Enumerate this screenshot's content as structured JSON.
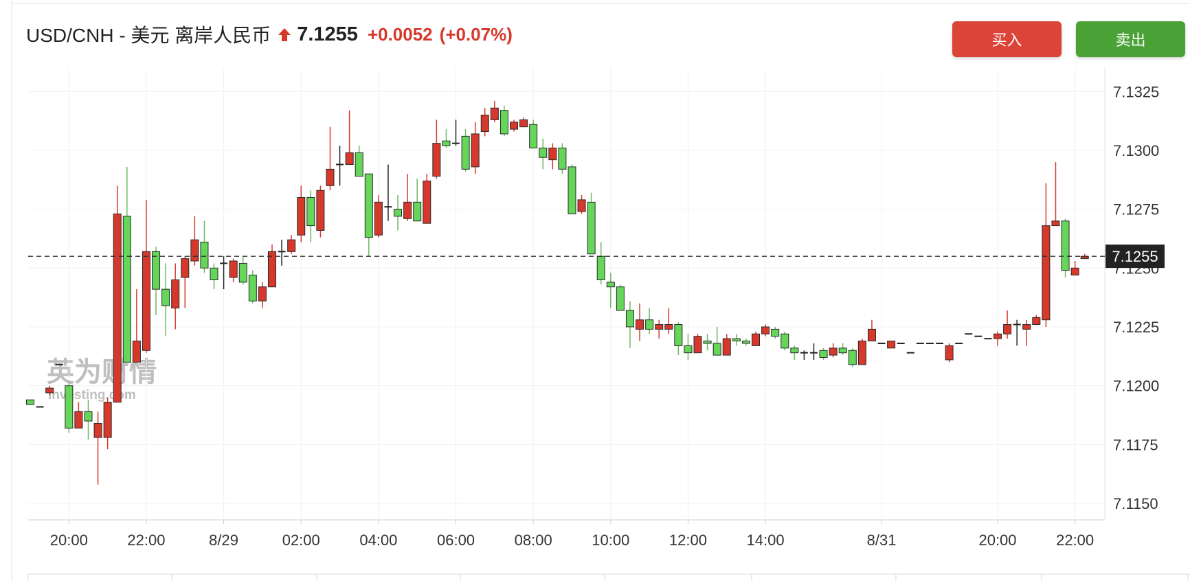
{
  "chart_data": {
    "type": "candlestick",
    "title": "USD/CNH - 美元 离岸人民币",
    "price": "7.1255",
    "change": "+0.0052",
    "change_pct": "(+0.07%)",
    "buttons": [
      "买入",
      "卖出"
    ],
    "watermark": [
      "英为财情",
      "Investing.com"
    ],
    "categories": [
      null,
      null,
      null,
      null,
      "20:00",
      null,
      null,
      null,
      null,
      null,
      null,
      null,
      "22:00",
      null,
      null,
      null,
      null,
      null,
      null,
      null,
      "8/29",
      null,
      null,
      null,
      null,
      null,
      null,
      null,
      "02:00",
      null,
      null,
      null,
      null,
      null,
      null,
      null,
      "04:00",
      null,
      null,
      null,
      null,
      null,
      null,
      null,
      "06:00",
      null,
      null,
      null,
      null,
      null,
      null,
      null,
      "08:00",
      null,
      null,
      null,
      null,
      null,
      null,
      null,
      "10:00",
      null,
      null,
      null,
      null,
      null,
      null,
      null,
      "12:00",
      null,
      null,
      null,
      null,
      null,
      null,
      null,
      "14:00",
      null,
      null,
      null,
      null,
      null,
      null,
      null,
      null,
      null,
      null,
      null,
      "8/31",
      null,
      null,
      null,
      null,
      null,
      null,
      null,
      null,
      null,
      null,
      null,
      "20:00",
      null,
      null,
      null,
      null,
      null,
      null,
      null,
      "22:00",
      null
    ],
    "open": [
      7.1194,
      7.1191,
      7.1197,
      7.1209,
      7.12,
      7.1182,
      7.1189,
      7.1178,
      7.1178,
      7.1193,
      7.1272,
      7.121,
      7.1215,
      7.1257,
      7.1241,
      7.1233,
      7.1246,
      7.1253,
      7.1261,
      7.125,
      7.1252,
      7.1246,
      7.1252,
      7.1247,
      7.1236,
      7.1242,
      7.1257,
      7.1257,
      7.1264,
      7.128,
      7.1266,
      7.1285,
      7.1294,
      7.1294,
      7.1299,
      7.129,
      7.1264,
      7.1276,
      7.1275,
      7.1271,
      7.1278,
      7.1269,
      7.1289,
      7.1304,
      7.1303,
      7.1306,
      7.1293,
      7.1308,
      7.1313,
      7.1317,
      7.1309,
      7.131,
      7.1311,
      7.1301,
      7.1296,
      7.1301,
      7.1293,
      7.1274,
      7.1278,
      7.1255,
      7.1244,
      7.1242,
      7.1232,
      7.1224,
      7.1228,
      7.1224,
      7.1224,
      7.1226,
      7.1217,
      7.1214,
      7.1219,
      7.1218,
      7.1213,
      7.122,
      7.1219,
      7.1217,
      7.1222,
      7.1224,
      7.1222,
      7.1216,
      7.1214,
      7.1214,
      7.1215,
      7.1213,
      7.1216,
      7.1215,
      7.1209,
      7.1219,
      7.1218,
      7.1216,
      7.1218,
      7.1214,
      7.1218,
      7.1218,
      7.1218,
      7.1211,
      7.1218,
      7.1222,
      7.1221,
      7.122,
      7.122,
      7.1222,
      7.1226,
      7.1224,
      7.1226,
      7.1228,
      7.1268,
      7.127,
      7.1247,
      7.1254
    ],
    "high": [
      7.1194,
      7.1191,
      7.12,
      7.1209,
      7.1202,
      7.1193,
      7.1194,
      7.1189,
      7.1195,
      7.1285,
      7.1293,
      7.1241,
      7.1279,
      7.1259,
      7.1252,
      7.1252,
      7.1255,
      7.1272,
      7.127,
      7.1252,
      7.1255,
      7.1254,
      7.1255,
      7.1249,
      7.1244,
      7.126,
      7.1262,
      7.1264,
      7.1285,
      7.1283,
      7.1285,
      7.131,
      7.1302,
      7.1317,
      7.1302,
      7.129,
      7.1281,
      7.1294,
      7.1281,
      7.129,
      7.1288,
      7.129,
      7.1313,
      7.1309,
      7.1313,
      7.1309,
      7.1312,
      7.1318,
      7.1321,
      7.1319,
      7.1313,
      7.1314,
      7.1313,
      7.1305,
      7.1303,
      7.1303,
      7.1294,
      7.1281,
      7.1282,
      7.1261,
      7.1248,
      7.1243,
      7.1236,
      7.1235,
      7.1233,
      7.1228,
      7.1233,
      7.1227,
      7.1222,
      7.1222,
      7.1222,
      7.1225,
      7.1222,
      7.1222,
      7.122,
      7.1223,
      7.1226,
      7.1225,
      7.1223,
      7.1217,
      7.1215,
      7.1218,
      7.1216,
      7.1218,
      7.1218,
      7.1216,
      7.122,
      7.1228,
      7.1218,
      7.1219,
      7.1218,
      7.1214,
      7.1218,
      7.1218,
      7.1218,
      7.1218,
      7.1218,
      7.1222,
      7.1221,
      7.122,
      7.1223,
      7.1232,
      7.1228,
      7.1228,
      7.123,
      7.1286,
      7.1295,
      7.1271,
      7.1253,
      7.1256
    ],
    "low": [
      7.1192,
      7.1191,
      7.1196,
      7.1209,
      7.118,
      7.1182,
      7.1177,
      7.1158,
      7.1173,
      7.1193,
      7.121,
      7.121,
      7.1214,
      7.123,
      7.1221,
      7.1224,
      7.1233,
      7.1251,
      7.1248,
      7.1241,
      7.1241,
      7.1244,
      7.1243,
      7.1235,
      7.1233,
      7.1242,
      7.1251,
      7.1256,
      7.1261,
      7.1261,
      7.1263,
      7.1283,
      7.1285,
      7.1294,
      7.1289,
      7.1255,
      7.1263,
      7.127,
      7.1266,
      7.127,
      7.127,
      7.1269,
      7.1288,
      7.1301,
      7.1302,
      7.1291,
      7.129,
      7.1306,
      7.1312,
      7.1306,
      7.1308,
      7.131,
      7.1301,
      7.1292,
      7.1292,
      7.129,
      7.1273,
      7.1273,
      7.1256,
      7.1243,
      7.1233,
      7.1232,
      7.1216,
      7.1219,
      7.1222,
      7.122,
      7.1222,
      7.1213,
      7.1211,
      7.1214,
      7.1215,
      7.1213,
      7.1213,
      7.1217,
      7.1217,
      7.1217,
      7.1221,
      7.122,
      7.1215,
      7.1211,
      7.1211,
      7.1211,
      7.1211,
      7.1212,
      7.1213,
      7.1208,
      7.1209,
      7.1219,
      7.1218,
      7.1216,
      7.1218,
      7.1214,
      7.1218,
      7.1218,
      7.1218,
      7.121,
      7.1218,
      7.1222,
      7.1221,
      7.122,
      7.1217,
      7.122,
      7.1217,
      7.1217,
      7.1226,
      7.1225,
      7.1268,
      7.1246,
      7.1247,
      7.1254
    ],
    "close": [
      7.1192,
      7.1191,
      7.1199,
      7.1209,
      7.1182,
      7.1189,
      7.1185,
      7.1184,
      7.1193,
      7.1273,
      7.121,
      7.1219,
      7.1257,
      7.1241,
      7.1234,
      7.1245,
      7.1254,
      7.1262,
      7.125,
      7.1245,
      7.1252,
      7.1253,
      7.1244,
      7.1236,
      7.1242,
      7.1257,
      7.1257,
      7.1262,
      7.128,
      7.1268,
      7.1283,
      7.1292,
      7.1294,
      7.1299,
      7.1289,
      7.1263,
      7.1278,
      7.1276,
      7.1272,
      7.1278,
      7.127,
      7.1287,
      7.1303,
      7.1302,
      7.1303,
      7.1292,
      7.1307,
      7.1315,
      7.1318,
      7.1307,
      7.1312,
      7.1313,
      7.1301,
      7.1297,
      7.1301,
      7.1292,
      7.1273,
      7.1279,
      7.1256,
      7.1245,
      7.1242,
      7.1232,
      7.1225,
      7.1228,
      7.1224,
      7.1226,
      7.1226,
      7.1217,
      7.1214,
      7.1221,
      7.1218,
      7.1213,
      7.122,
      7.1219,
      7.1218,
      7.1222,
      7.1225,
      7.1221,
      7.1216,
      7.1214,
      7.1214,
      7.1214,
      7.1212,
      7.1216,
      7.1214,
      7.1209,
      7.1219,
      7.1224,
      7.1218,
      7.1219,
      7.1218,
      7.1214,
      7.1218,
      7.1218,
      7.1218,
      7.1217,
      7.1218,
      7.1222,
      7.1221,
      7.122,
      7.1222,
      7.1226,
      7.1226,
      7.1226,
      7.1229,
      7.1268,
      7.127,
      7.1249,
      7.125,
      7.1255
    ],
    "up_color": "#d6392b",
    "down_color": "#66d65a",
    "flat_color": "#222222",
    "last_price": {
      "value": 7.1255,
      "label": "7.1255"
    },
    "ylim": [
      7.1143,
      7.1335
    ],
    "yticks": [
      {
        "value": 7.115,
        "label": "7.1150"
      },
      7.1175,
      {
        "value": 7.12,
        "label": "7.1200"
      },
      7.1225,
      {
        "value": 7.125,
        "label": "7.1250"
      },
      7.1275,
      {
        "value": 7.13,
        "label": "7.1300"
      },
      7.1325
    ],
    "grid": true
  }
}
